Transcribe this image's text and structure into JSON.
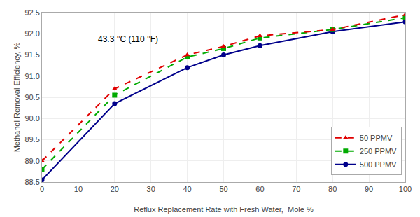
{
  "chart_data": {
    "type": "line",
    "x_label": "Reflux Replacement Rate with Fresh Water,  Mole %",
    "y_label": "Methanol Removal Efficiency, %",
    "annotation": "43.3 °C (110 °F)",
    "x": [
      0,
      20,
      40,
      50,
      60,
      80,
      100
    ],
    "series": [
      {
        "name": "50 PPMV",
        "color": "#e00000",
        "line_style": "dashed",
        "marker": "triangle-up",
        "values": [
          89.0,
          90.7,
          91.5,
          91.7,
          91.95,
          92.1,
          92.45
        ]
      },
      {
        "name": "250 PPMV",
        "color": "#00aa00",
        "line_style": "dashed",
        "marker": "square",
        "values": [
          88.8,
          90.55,
          91.45,
          91.65,
          91.9,
          92.1,
          92.38
        ]
      },
      {
        "name": "500 PPMV",
        "color": "#00008b",
        "line_style": "solid",
        "marker": "circle",
        "values": [
          88.55,
          90.35,
          91.2,
          91.5,
          91.72,
          92.05,
          92.28
        ]
      }
    ],
    "xlim": [
      0,
      100
    ],
    "ylim": [
      88.5,
      92.5
    ],
    "xticks": [
      0,
      10,
      20,
      30,
      40,
      50,
      60,
      70,
      80,
      90,
      100
    ],
    "yticks": [
      88.5,
      {
        "value": 89,
        "label": "89.0"
      },
      89.5,
      {
        "value": 90,
        "label": "90.0"
      },
      90.5,
      {
        "value": 91,
        "label": "91.0"
      },
      91.5,
      {
        "value": 92,
        "label": "92.0"
      },
      92.5
    ],
    "grid": true,
    "legend": "lower right"
  }
}
